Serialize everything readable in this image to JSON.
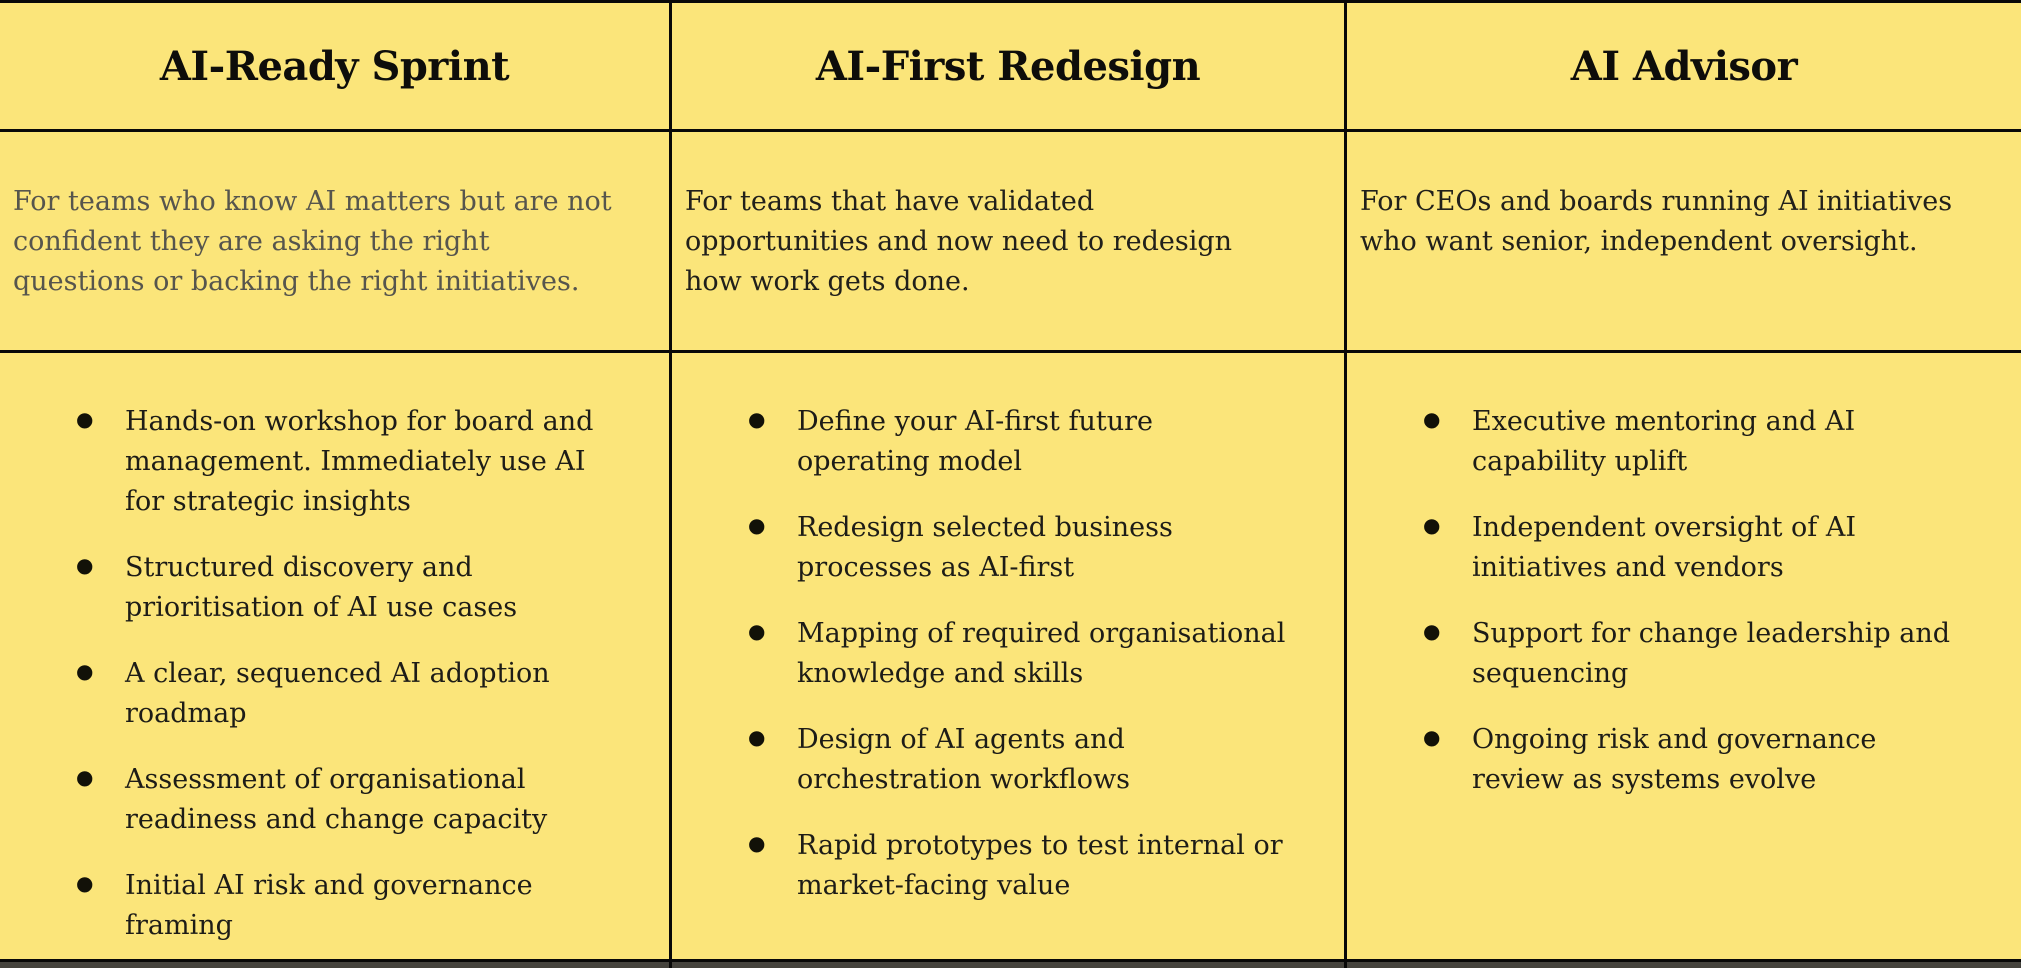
{
  "colors": {
    "table_background": "#FBE57A",
    "border": "#080808",
    "heading_text": "#0E0D0A",
    "muted_description_text": "#56554D",
    "body_text": "#1D1C17",
    "bottom_strip": "#45433D"
  },
  "table": {
    "columns": [
      {
        "title": "AI-Ready Sprint",
        "description": "For teams who know AI matters but are not\nconfident they are asking the right\nquestions or backing the right initiatives.",
        "bullets": [
          "Hands-on workshop for board and\nmanagement. Immediately use AI\nfor strategic insights",
          "Structured discovery and\nprioritisation of AI use cases",
          "A clear, sequenced AI adoption\nroadmap",
          "Assessment of organisational\nreadiness and change capacity",
          "Initial AI risk and governance\nframing"
        ]
      },
      {
        "title": "AI-First Redesign",
        "description": "For teams that have validated\nopportunities and now need to redesign\nhow work gets done.",
        "bullets": [
          "Define your AI-first future\noperating model",
          "Redesign selected business\nprocesses as AI-first",
          "Mapping of required organisational\nknowledge and skills",
          "Design of AI agents and\norchestration workflows",
          "Rapid prototypes to test internal or\nmarket-facing value"
        ]
      },
      {
        "title": "AI Advisor",
        "description": "For CEOs and boards running AI initiatives\nwho want senior, independent oversight.",
        "bullets": [
          "Executive mentoring and AI\ncapability uplift",
          "Independent oversight of AI\ninitiatives and vendors",
          "Support for change leadership and\nsequencing",
          "Ongoing risk and governance\nreview as systems evolve"
        ]
      }
    ]
  }
}
